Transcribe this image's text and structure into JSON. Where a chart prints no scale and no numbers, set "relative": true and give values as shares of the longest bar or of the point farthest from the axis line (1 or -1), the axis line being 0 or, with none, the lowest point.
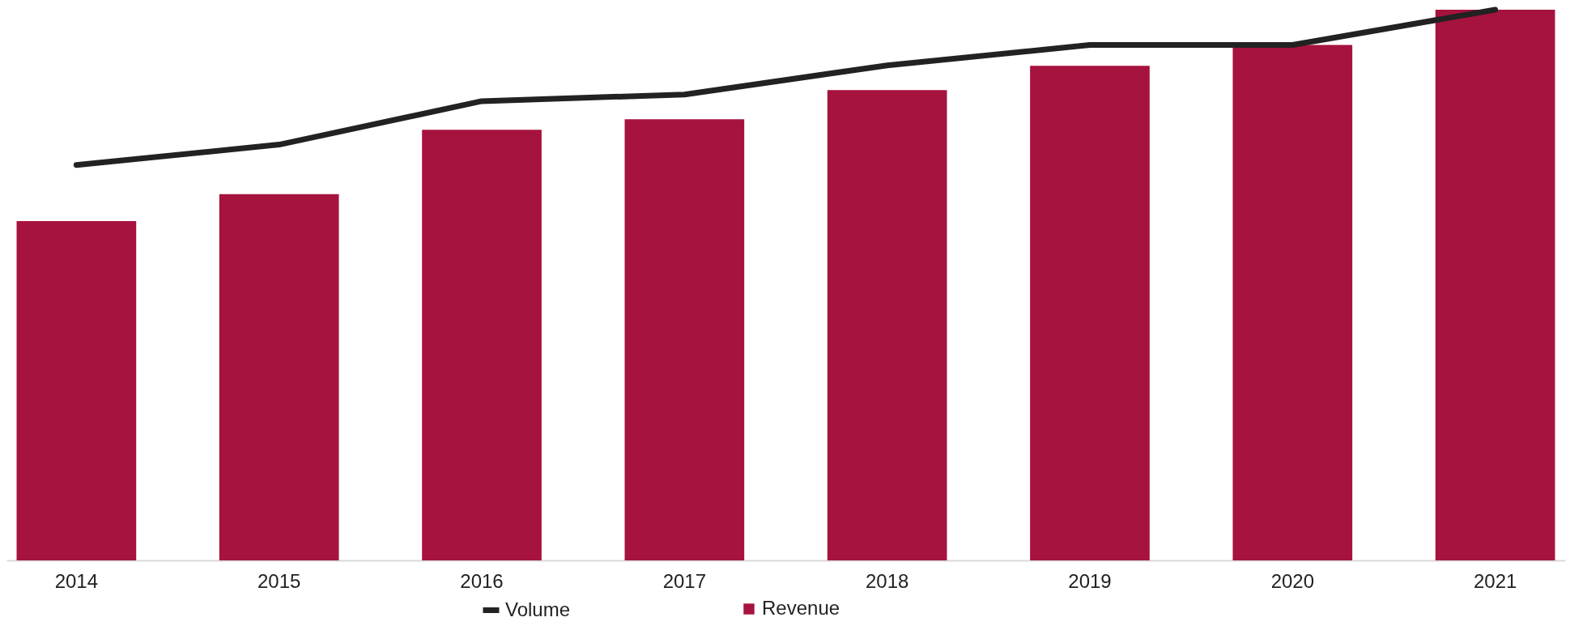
{
  "chart_data": {
    "type": "bar",
    "relative": true,
    "categories": [
      "2014",
      "2015",
      "2016",
      "2017",
      "2018",
      "2019",
      "2020",
      "2021"
    ],
    "series": [
      {
        "name": "Revenue",
        "color": "#a6133e",
        "values": [
          0.616,
          0.665,
          0.782,
          0.801,
          0.854,
          0.898,
          0.936,
          1.0
        ]
      },
      {
        "name": "Volume",
        "type": "line",
        "color": "#222222",
        "values": [
          0.718,
          0.755,
          0.834,
          0.846,
          0.899,
          0.936,
          0.936,
          1.0
        ]
      }
    ],
    "legend": "bottom",
    "grid": false
  }
}
